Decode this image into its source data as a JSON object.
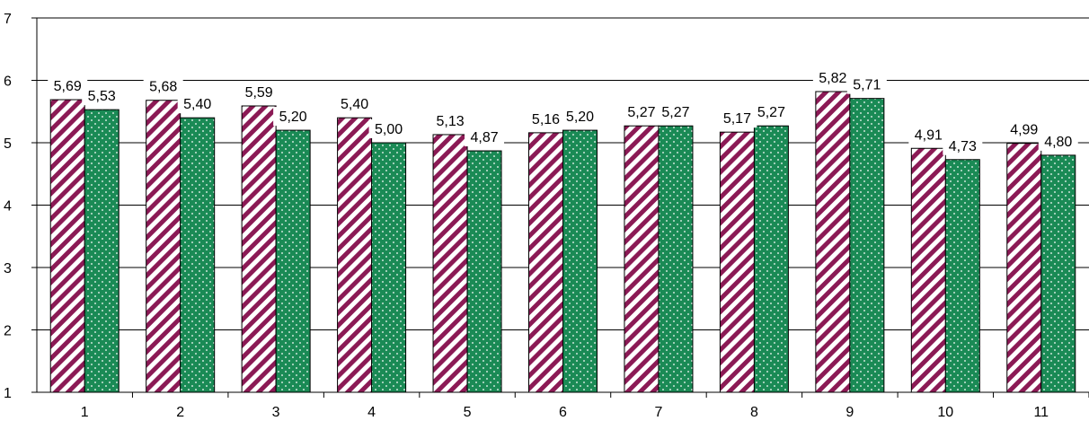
{
  "chart_data": {
    "type": "bar",
    "categories": [
      "1",
      "2",
      "3",
      "4",
      "5",
      "6",
      "7",
      "8",
      "9",
      "10",
      "11"
    ],
    "series": [
      {
        "values": [
          5.69,
          5.68,
          5.59,
          5.4,
          5.13,
          5.16,
          5.27,
          5.17,
          5.82,
          4.91,
          4.99
        ],
        "labels": [
          "5,69",
          "5,68",
          "5,59",
          "5,40",
          "5,13",
          "5,16",
          "5,27",
          "5,17",
          "5,82",
          "4,91",
          "4,99"
        ],
        "color": "#8b1a55",
        "pattern": "diagonal-stripes"
      },
      {
        "values": [
          5.53,
          5.4,
          5.2,
          5.0,
          4.87,
          5.2,
          5.27,
          5.27,
          5.71,
          4.73,
          4.8
        ],
        "labels": [
          "5,53",
          "5,40",
          "5,20",
          "5,00",
          "4,87",
          "5,20",
          "5,27",
          "5,27",
          "5,71",
          "4,73",
          "4,80"
        ],
        "color": "#1a8a55",
        "pattern": "dots"
      }
    ],
    "y_ticks": [
      "1",
      "2",
      "3",
      "4",
      "5",
      "6",
      "7"
    ],
    "ylim": [
      1,
      7
    ],
    "grid": "horizontal",
    "legend": "none",
    "title": "",
    "xlabel": "",
    "ylabel": ""
  }
}
